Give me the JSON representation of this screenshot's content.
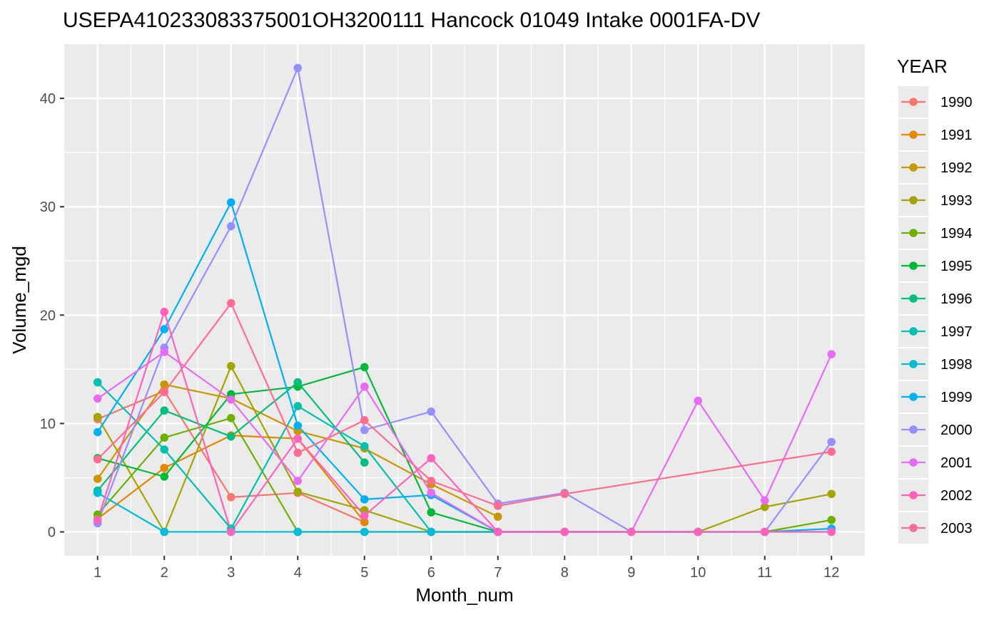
{
  "chart_data": {
    "type": "line",
    "title": "USEPA410233083375001OH3200111 Hancock 01049 Intake 0001FA-DV",
    "xlabel": "Month_num",
    "ylabel": "Volume_mgd",
    "xlim": [
      0.5,
      12.5
    ],
    "ylim": [
      -2.2,
      45
    ],
    "x_ticks": [
      1,
      2,
      3,
      4,
      5,
      6,
      7,
      8,
      9,
      10,
      11,
      12
    ],
    "y_ticks": [
      0,
      10,
      20,
      30,
      40
    ],
    "grid": true,
    "legend_title": "YEAR",
    "legend_position": "right",
    "series": [
      {
        "name": "1990",
        "color": "#F8766D",
        "x": [
          1,
          2,
          3,
          4,
          5
        ],
        "y": [
          10.4,
          13.0,
          3.2,
          3.6,
          0.9
        ]
      },
      {
        "name": "1991",
        "color": "#E58700",
        "x": [
          1,
          2,
          3,
          4,
          5
        ],
        "y": [
          1.2,
          5.9,
          8.9,
          8.6,
          0.9
        ]
      },
      {
        "name": "1992",
        "color": "#C99800",
        "x": [
          1,
          2,
          3,
          4,
          5,
          6,
          7
        ],
        "y": [
          4.9,
          13.6,
          12.3,
          9.3,
          7.7,
          4.4,
          1.4
        ]
      },
      {
        "name": "1993",
        "color": "#A3A500",
        "x": [
          1,
          2,
          3,
          4,
          5,
          6,
          7,
          8,
          9,
          10,
          11,
          12
        ],
        "y": [
          10.6,
          0.0,
          15.3,
          3.7,
          2.0,
          0.0,
          0.0,
          0.0,
          0.0,
          0.0,
          2.3,
          3.5
        ]
      },
      {
        "name": "1994",
        "color": "#6BB100",
        "x": [
          1,
          2,
          3,
          4,
          5,
          6,
          7,
          8,
          9,
          10,
          11,
          12
        ],
        "y": [
          1.6,
          8.7,
          10.5,
          0.0,
          0.0,
          0.0,
          0.0,
          0.0,
          0.0,
          0.0,
          0.0,
          1.1
        ]
      },
      {
        "name": "1995",
        "color": "#00BA38",
        "x": [
          1,
          2,
          3,
          4,
          5,
          6,
          7
        ],
        "y": [
          6.8,
          5.1,
          12.7,
          13.4,
          15.2,
          1.8,
          0.0
        ]
      },
      {
        "name": "1996",
        "color": "#00BF7D",
        "x": [
          1,
          2,
          3,
          4,
          5
        ],
        "y": [
          3.8,
          11.2,
          8.8,
          13.8,
          6.4
        ]
      },
      {
        "name": "1997",
        "color": "#00C0AF",
        "x": [
          1,
          2,
          3,
          4,
          5,
          6,
          7
        ],
        "y": [
          13.8,
          7.6,
          0.3,
          11.6,
          7.9,
          0.0,
          0.0
        ]
      },
      {
        "name": "1998",
        "color": "#00BCD8",
        "x": [
          1,
          2,
          3,
          4,
          5,
          6,
          7,
          8,
          9,
          10,
          11,
          12
        ],
        "y": [
          3.6,
          0.0,
          0.0,
          0.0,
          0.0,
          0.0,
          0.0,
          0.0,
          0.0,
          0.0,
          0.0,
          0.0
        ]
      },
      {
        "name": "1999",
        "color": "#00B0F6",
        "x": [
          1,
          2,
          3,
          4,
          5,
          6,
          7,
          8,
          9,
          10,
          11,
          12
        ],
        "y": [
          9.2,
          18.7,
          30.4,
          9.8,
          3.0,
          3.4,
          0.0,
          0.0,
          0.0,
          0.0,
          0.0,
          0.3
        ]
      },
      {
        "name": "2000",
        "color": "#9590FF",
        "x": [
          1,
          2,
          3,
          4,
          5,
          6,
          7,
          8,
          9,
          10,
          11,
          12
        ],
        "y": [
          0.8,
          17.0,
          28.2,
          42.8,
          9.4,
          11.1,
          2.6,
          3.6,
          0.0,
          0.0,
          0.0,
          8.3
        ]
      },
      {
        "name": "2001",
        "color": "#E76BF3",
        "x": [
          1,
          2,
          3,
          4,
          5,
          6,
          7,
          8,
          9,
          10,
          11,
          12
        ],
        "y": [
          12.3,
          16.6,
          12.2,
          4.7,
          13.4,
          3.6,
          0.0,
          0.0,
          0.0,
          12.1,
          2.9,
          16.4
        ]
      },
      {
        "name": "2002",
        "color": "#FF62BC",
        "x": [
          1,
          2,
          3,
          4,
          5,
          6,
          7,
          8,
          9,
          10,
          11,
          12
        ],
        "y": [
          1.1,
          20.3,
          0.0,
          8.6,
          1.5,
          6.8,
          0.0,
          0.0,
          0.0,
          0.0,
          0.0,
          0.0
        ]
      },
      {
        "name": "2003",
        "color": "#FF6C91",
        "x": [
          1,
          2,
          3,
          4,
          5,
          6,
          7,
          8,
          12
        ],
        "y": [
          6.7,
          12.9,
          21.1,
          7.3,
          10.3,
          4.7,
          2.4,
          3.5,
          7.4
        ]
      }
    ]
  }
}
